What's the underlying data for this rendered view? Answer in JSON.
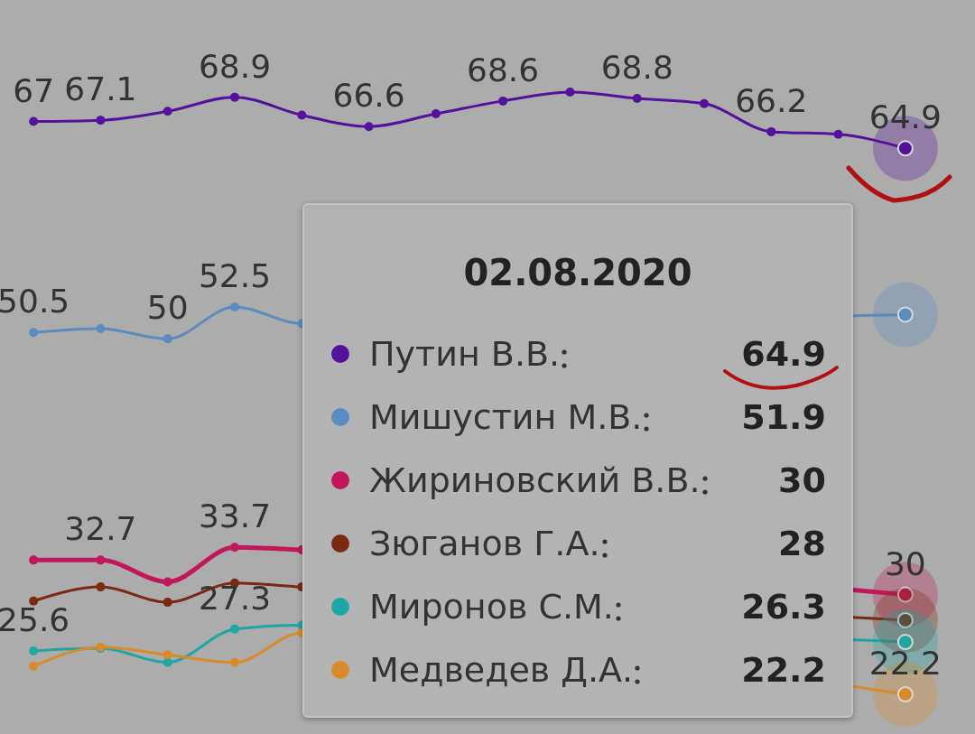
{
  "chart_data": [
    {
      "type": "line",
      "categories": [
        null,
        null,
        null,
        null,
        null,
        null,
        null,
        null,
        null,
        null,
        null,
        null,
        null,
        null
      ],
      "series": [
        {
          "color": "#56119c",
          "values": [
            67,
            67.1,
            67.8,
            68.9,
            67.5,
            66.6,
            67.6,
            68.6,
            69.3,
            68.8,
            68.4,
            66.2,
            66.0,
            64.9
          ],
          "value_labels": [
            "67",
            "67.1",
            null,
            "68.9",
            null,
            "66.6",
            null,
            "68.6",
            null,
            "68.8",
            null,
            "66.2",
            null,
            "64.9"
          ]
        },
        {
          "color": "#5b8cc0",
          "values": [
            50.5,
            50.8,
            50,
            52.5,
            51.2,
            null,
            null,
            null,
            null,
            null,
            null,
            null,
            null,
            51.9
          ],
          "value_labels": [
            "50.5",
            null,
            "50",
            "52.5",
            null,
            null,
            null,
            null,
            null,
            null,
            null,
            null,
            null,
            null
          ]
        },
        {
          "color": "#c0185a",
          "values": [
            32.7,
            32.7,
            31.0,
            33.7,
            33.5,
            null,
            null,
            null,
            null,
            null,
            null,
            null,
            null,
            30
          ],
          "value_labels": [
            null,
            "32.7",
            null,
            "33.7",
            null,
            null,
            null,
            null,
            null,
            null,
            null,
            null,
            null,
            "30"
          ]
        },
        {
          "color": "#7a2a10",
          "values": [
            29.5,
            30.6,
            29.4,
            30.9,
            30.6,
            null,
            null,
            null,
            null,
            null,
            null,
            null,
            null,
            28
          ]
        },
        {
          "color": "#1fa7a5",
          "values": [
            25.6,
            25.8,
            24.7,
            27.3,
            27.6,
            null,
            null,
            null,
            null,
            null,
            null,
            null,
            null,
            26.3
          ],
          "value_labels": [
            "25.6",
            null,
            null,
            "27.3",
            null,
            null,
            null,
            null,
            null,
            null,
            null,
            null,
            null,
            null
          ]
        },
        {
          "color": "#d98a2a",
          "values": [
            24.4,
            25.9,
            25.3,
            24.7,
            27.0,
            null,
            null,
            null,
            null,
            null,
            null,
            null,
            null,
            22.2
          ],
          "value_labels": [
            null,
            null,
            null,
            null,
            null,
            null,
            null,
            null,
            null,
            null,
            null,
            null,
            null,
            "22.2"
          ]
        }
      ],
      "ylim": [
        19.1,
        76.5
      ],
      "tick_labels": false,
      "marker": "circle",
      "line_style": "solid"
    },
    {
      "type": "other",
      "title": "02.08.2020",
      "categories": [
        "Путин В.В.",
        "Мишустин М.В.",
        "Жириновский В.В.",
        "Зюганов Г.А.",
        "Миронов С.М.",
        "Медведев Д.А."
      ],
      "values": [
        64.9,
        51.9,
        30,
        28,
        26.3,
        22.2
      ],
      "data_labels": true
    }
  ]
}
